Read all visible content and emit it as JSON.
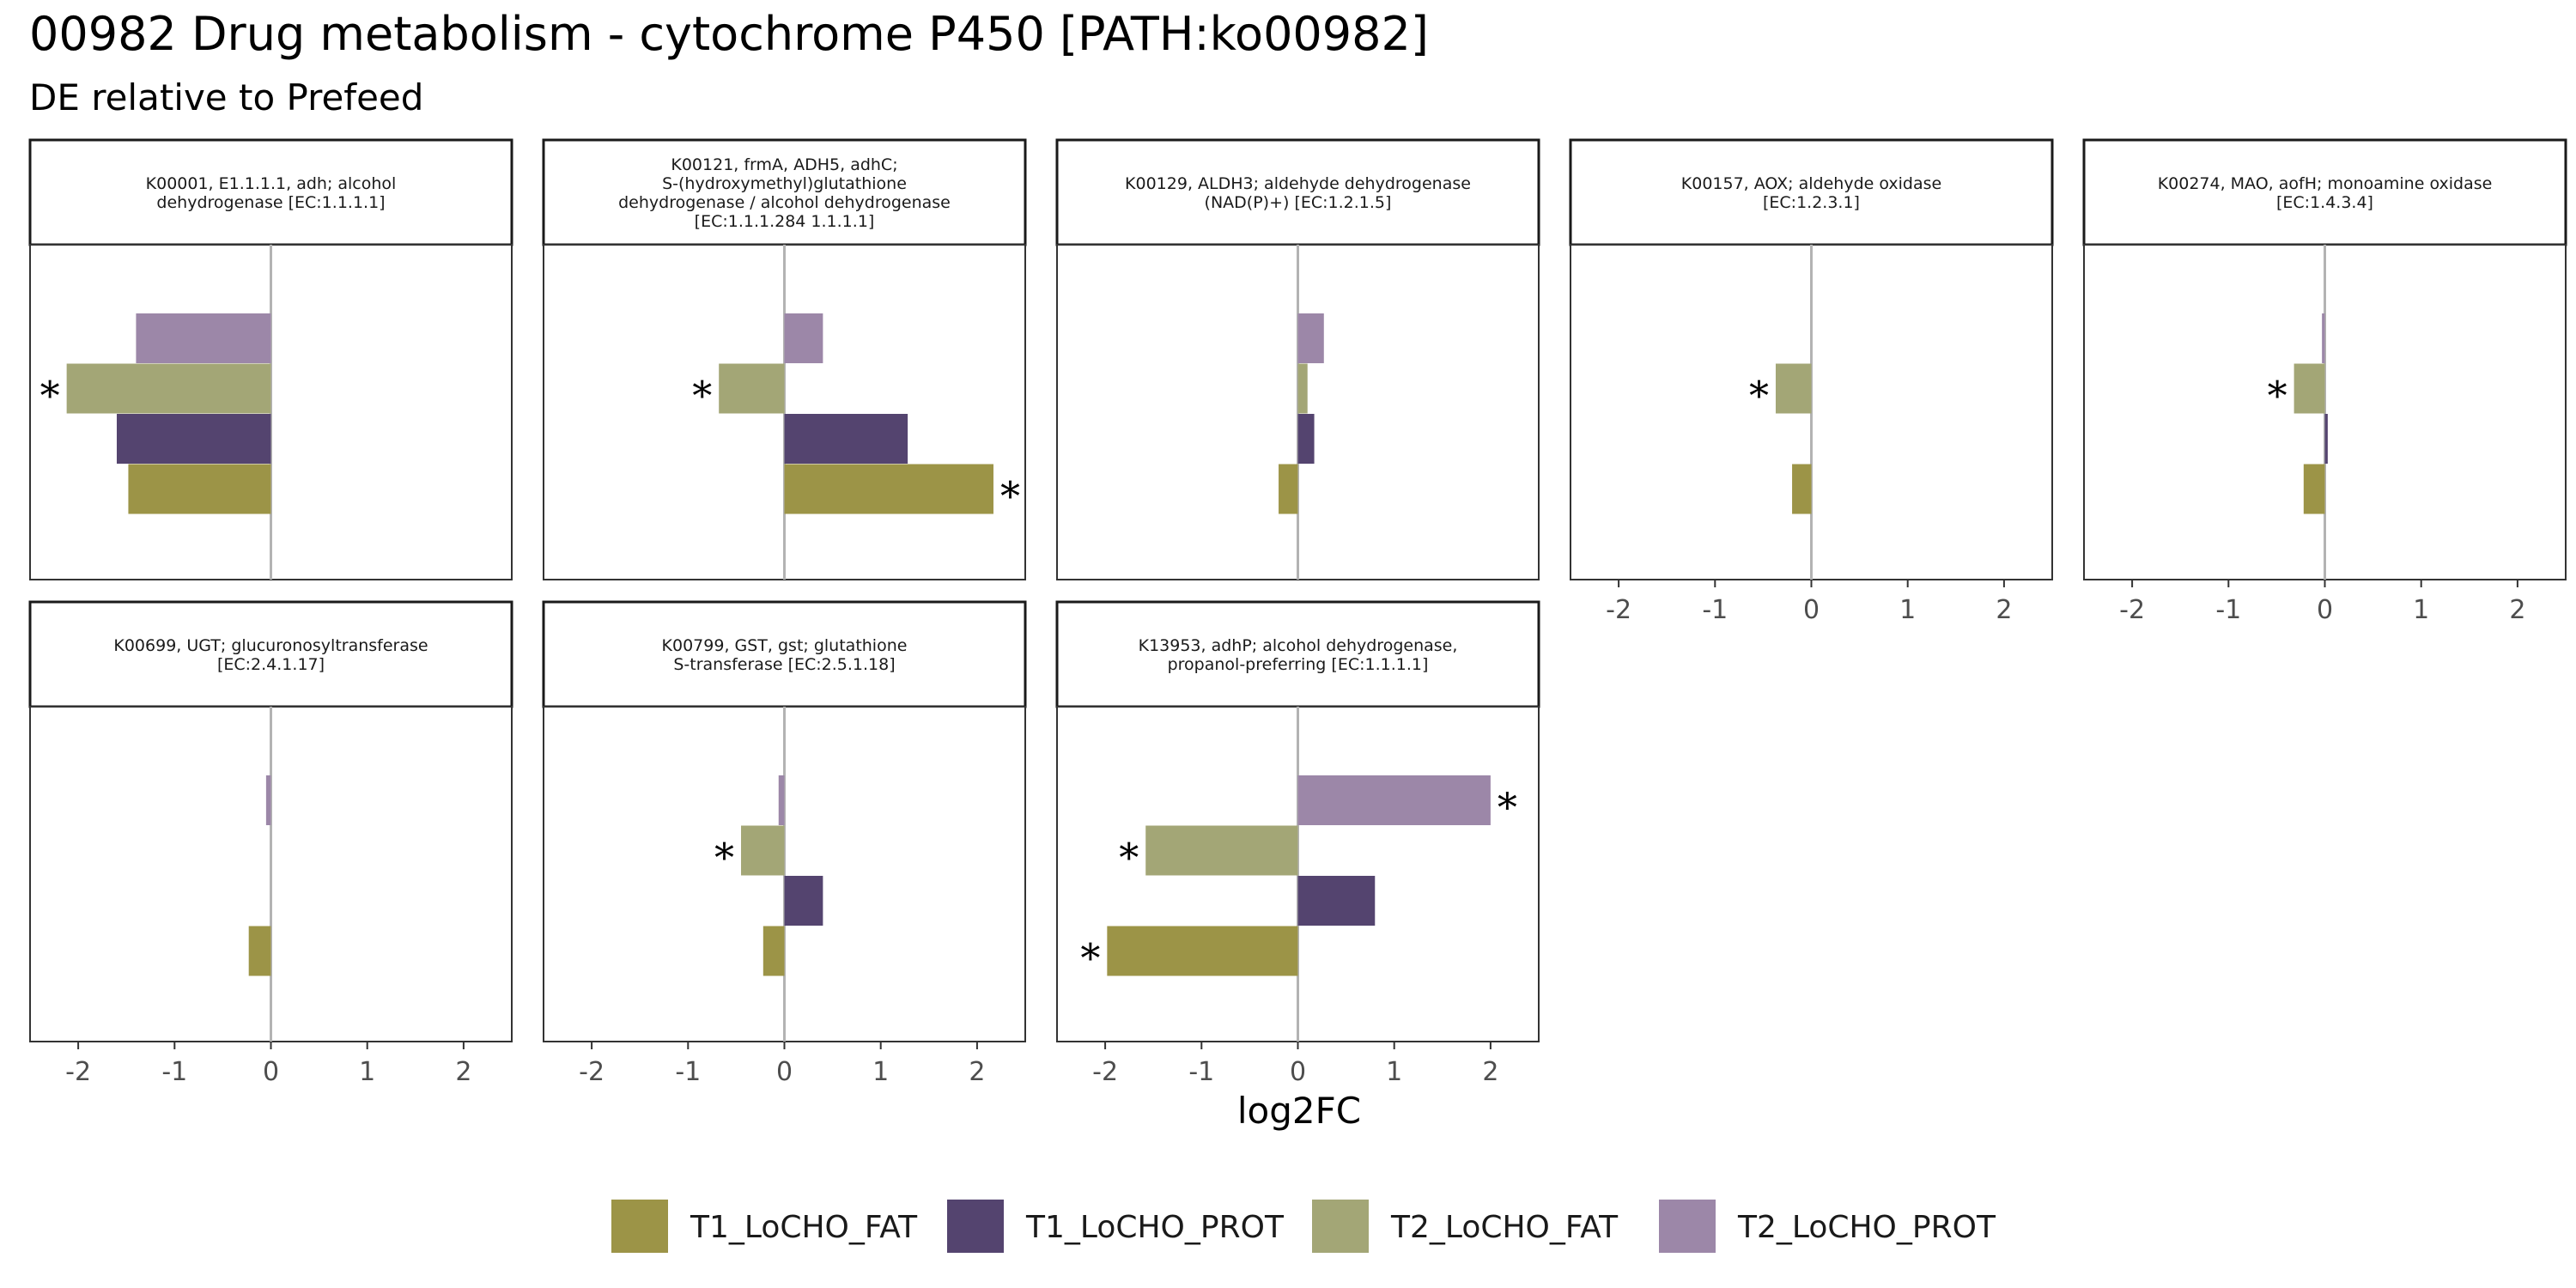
{
  "title": "00982 Drug metabolism - cytochrome P450 [PATH:ko00982]",
  "subtitle": "DE relative to Prefeed",
  "chart_data": {
    "type": "bar",
    "orientation": "horizontal",
    "xlabel": "log2FC",
    "xlim": [
      -2.5,
      2.5
    ],
    "xticks": [
      -2,
      -1,
      0,
      1,
      2
    ],
    "xtick_labels": [
      "-2",
      "-1",
      "0",
      "1",
      "2"
    ],
    "grid": false,
    "legend_position": "bottom",
    "significance_marker": "*",
    "series": [
      {
        "name": "T1_LoCHO_FAT",
        "color": "#9c9447"
      },
      {
        "name": "T1_LoCHO_PROT",
        "color": "#54446f"
      },
      {
        "name": "T2_LoCHO_FAT",
        "color": "#a3a676"
      },
      {
        "name": "T2_LoCHO_PROT",
        "color": "#9c87a8"
      }
    ],
    "panels": [
      {
        "label_lines": [
          "K00001, E1.1.1.1, adh; alcohol",
          "dehydrogenase [EC:1.1.1.1]"
        ],
        "values": [
          -1.48,
          -1.6,
          -2.12,
          -1.4
        ],
        "significant": [
          false,
          false,
          true,
          false
        ]
      },
      {
        "label_lines": [
          "K00121, frmA, ADH5, adhC;",
          "S-(hydroxymethyl)glutathione",
          "dehydrogenase / alcohol dehydrogenase",
          "[EC:1.1.1.284 1.1.1.1]"
        ],
        "values": [
          2.17,
          1.28,
          -0.68,
          0.4
        ],
        "significant": [
          true,
          false,
          true,
          false
        ]
      },
      {
        "label_lines": [
          "K00129, ALDH3; aldehyde dehydrogenase",
          "(NAD(P)+) [EC:1.2.1.5]"
        ],
        "values": [
          -0.2,
          0.17,
          0.1,
          0.27
        ],
        "significant": [
          false,
          false,
          false,
          false
        ]
      },
      {
        "label_lines": [
          "K00157, AOX; aldehyde oxidase",
          "[EC:1.2.3.1]"
        ],
        "values": [
          -0.2,
          0,
          -0.37,
          0
        ],
        "significant": [
          false,
          false,
          true,
          false
        ]
      },
      {
        "label_lines": [
          "K00274, MAO, aofH; monoamine oxidase",
          "[EC:1.4.3.4]"
        ],
        "values": [
          -0.22,
          0.03,
          -0.32,
          -0.03
        ],
        "significant": [
          false,
          false,
          true,
          false
        ]
      },
      {
        "label_lines": [
          "K00699, UGT; glucuronosyltransferase",
          "[EC:2.4.1.17]"
        ],
        "values": [
          -0.23,
          0,
          0,
          -0.05
        ],
        "significant": [
          false,
          false,
          false,
          false
        ]
      },
      {
        "label_lines": [
          "K00799, GST, gst; glutathione",
          "S-transferase [EC:2.5.1.18]"
        ],
        "values": [
          -0.22,
          0.4,
          -0.45,
          -0.06
        ],
        "significant": [
          false,
          false,
          true,
          false
        ]
      },
      {
        "label_lines": [
          "K13953, adhP; alcohol dehydrogenase,",
          "propanol-preferring [EC:1.1.1.1]"
        ],
        "values": [
          -1.98,
          0.8,
          -1.58,
          2.0
        ],
        "significant": [
          true,
          false,
          true,
          true
        ]
      }
    ]
  }
}
